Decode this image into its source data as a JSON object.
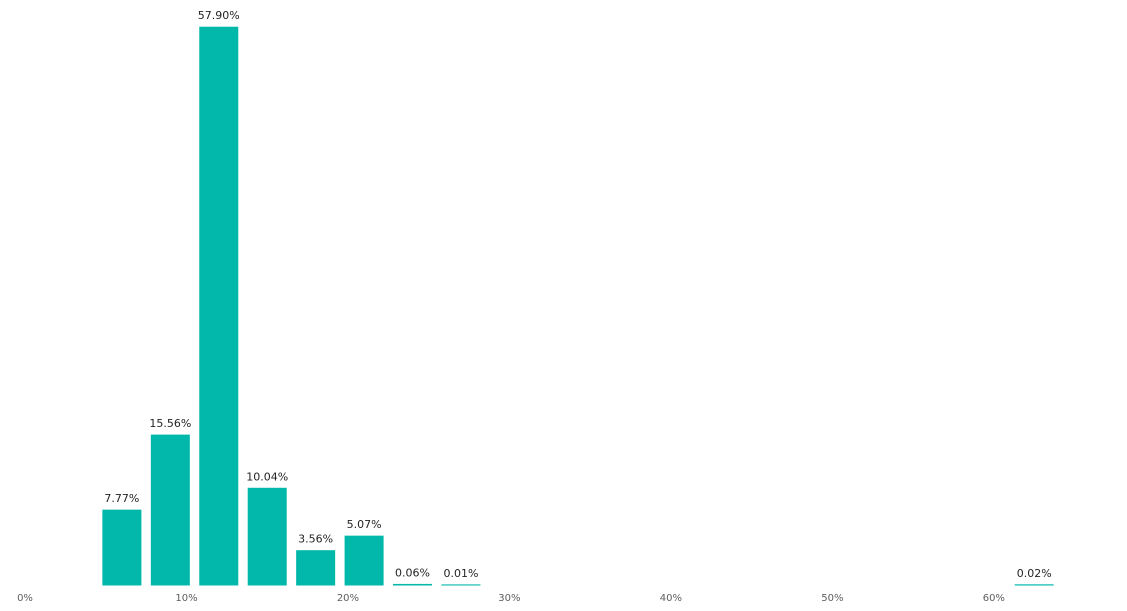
{
  "chart_data": {
    "type": "bar",
    "x": [
      6,
      9,
      12,
      15,
      18,
      21,
      24,
      27,
      62.5
    ],
    "values": [
      7.77,
      15.56,
      57.9,
      10.04,
      3.56,
      5.07,
      0.06,
      0.01,
      0.02
    ],
    "value_labels": [
      "7.77%",
      "15.56%",
      "57.90%",
      "10.04%",
      "3.56%",
      "5.07%",
      "0.06%",
      "0.01%",
      "0.02%"
    ],
    "color": "#01b8aa",
    "xlim": [
      0,
      68
    ],
    "xticks": [
      {
        "value": 0,
        "label": "0%"
      },
      {
        "value": 10,
        "label": "10%"
      },
      {
        "value": 20,
        "label": "20%"
      },
      {
        "value": 30,
        "label": "30%"
      },
      {
        "value": 40,
        "label": "40%"
      },
      {
        "value": 50,
        "label": "50%"
      },
      {
        "value": 60,
        "label": "60%"
      }
    ],
    "ylim": [
      0,
      60
    ]
  }
}
